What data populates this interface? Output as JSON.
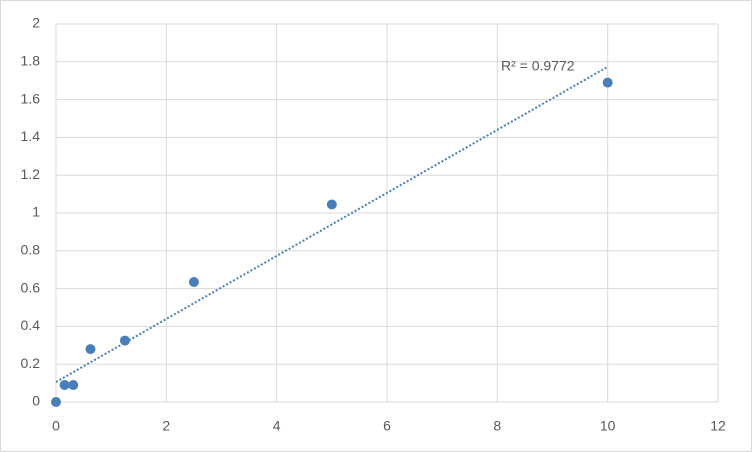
{
  "chart_data": {
    "type": "scatter",
    "series": [
      {
        "color": "#4a7ebb",
        "x": [
          0,
          0.156,
          0.3125,
          0.625,
          1.25,
          2.5,
          5,
          10
        ],
        "values": [
          0,
          0.09,
          0.09,
          0.28,
          0.325,
          0.635,
          1.045,
          1.69
        ]
      }
    ],
    "trendline": "linear",
    "annotation": "R² = 0.9772",
    "xlim": [
      0,
      12
    ],
    "xticks": [
      0,
      2,
      4,
      6,
      8,
      10,
      12
    ],
    "ylim": [
      0,
      2
    ],
    "yticks": [
      0,
      0.2,
      0.4,
      0.6,
      0.8,
      1,
      1.2,
      1.4,
      1.6,
      1.8,
      2
    ],
    "grid": true
  }
}
